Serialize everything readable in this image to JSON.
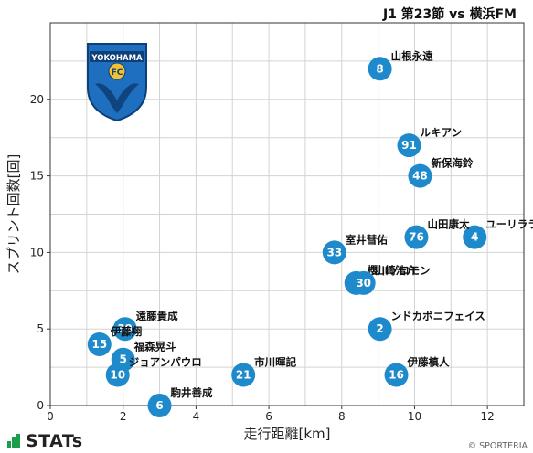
{
  "header": {
    "match_title": "J1 第23節 vs 横浜FM"
  },
  "team_logo": {
    "text": "YOKOHAMA",
    "mark": "FC",
    "color": "#1e6fbf"
  },
  "branding": {
    "logo_text": "STATs",
    "copyright": "© SPORTERIA"
  },
  "colors": {
    "point": "#1f8acb",
    "grid": "#d3d3d3",
    "brand_green": "#1b9e4b"
  },
  "chart_data": {
    "type": "scatter",
    "xlabel": "走行距離[km]",
    "ylabel": "スプリント回数[回]",
    "xlim": [
      0,
      13
    ],
    "ylim": [
      0,
      25
    ],
    "x_ticks": [
      0,
      2,
      4,
      6,
      8,
      10,
      12
    ],
    "y_ticks": [
      0,
      5,
      10,
      15,
      20
    ],
    "grid": true,
    "points": [
      {
        "number": "8",
        "name": "山根永遠",
        "x": 9.05,
        "y": 22
      },
      {
        "number": "91",
        "name": "ルキアン",
        "x": 9.85,
        "y": 17
      },
      {
        "number": "48",
        "name": "新保海鈴",
        "x": 10.15,
        "y": 15
      },
      {
        "number": "4",
        "name": "ユーリララ",
        "x": 11.65,
        "y": 11
      },
      {
        "number": "76",
        "name": "山田康太",
        "x": 10.05,
        "y": 11
      },
      {
        "number": "33",
        "name": "室井彗佑",
        "x": 7.8,
        "y": 10
      },
      {
        "number": "9",
        "name": "櫻川ソロモン",
        "x": 8.4,
        "y": 8
      },
      {
        "number": "30",
        "name": "山崎浩介",
        "x": 8.6,
        "y": 8
      },
      {
        "number": "2",
        "name": "ンドカボニフェイス",
        "x": 9.05,
        "y": 5
      },
      {
        "number": "39",
        "name": "遠藤貴成",
        "x": 2.05,
        "y": 5
      },
      {
        "number": "15",
        "name": "伊藤翔",
        "x": 1.35,
        "y": 4
      },
      {
        "number": "5",
        "name": "福森晃斗",
        "x": 2.0,
        "y": 3
      },
      {
        "number": "10",
        "name": "ジョアンパウロ",
        "x": 1.85,
        "y": 2
      },
      {
        "number": "21",
        "name": "市川暉記",
        "x": 5.3,
        "y": 2
      },
      {
        "number": "16",
        "name": "伊藤槙人",
        "x": 9.5,
        "y": 2
      },
      {
        "number": "6",
        "name": "駒井善成",
        "x": 3.0,
        "y": 0
      }
    ]
  }
}
